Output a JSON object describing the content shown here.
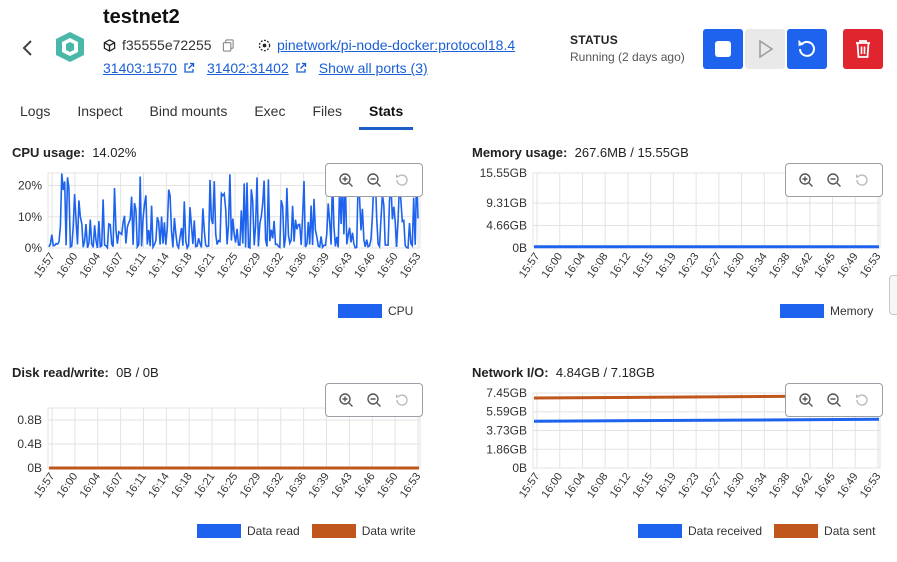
{
  "header": {
    "title": "testnet2",
    "container_id": "f35555e72255",
    "image": "pinetwork/pi-node-docker:protocol18.4",
    "ports": [
      "31403:1570",
      "31402:31402"
    ],
    "show_all_ports": "Show all ports (3)",
    "status_label": "STATUS",
    "status_value": "Running (2 days ago)"
  },
  "tabs": [
    {
      "label": "Logs",
      "active": false
    },
    {
      "label": "Inspect",
      "active": false
    },
    {
      "label": "Bind mounts",
      "active": false
    },
    {
      "label": "Exec",
      "active": false
    },
    {
      "label": "Files",
      "active": false
    },
    {
      "label": "Stats",
      "active": true
    }
  ],
  "colors": {
    "blue": "#1d63ed",
    "orange": "#c0561b",
    "red": "#e0252f"
  },
  "panels": {
    "cpu": {
      "label": "CPU usage:",
      "value": "14.02%"
    },
    "memory": {
      "label": "Memory usage:",
      "value": "267.6MB / 15.55GB"
    },
    "disk": {
      "label": "Disk read/write:",
      "value": "0B / 0B"
    },
    "network": {
      "label": "Network I/O:",
      "value": "4.84GB / 7.18GB"
    }
  },
  "chart_data": [
    {
      "id": "cpu",
      "type": "line",
      "y_ticks": [
        "20%",
        "10%",
        "0%"
      ],
      "y_tick_values": [
        20,
        10,
        0
      ],
      "ylim": [
        0,
        24
      ],
      "x_ticks": [
        "15:57",
        "16:00",
        "16:04",
        "16:07",
        "16:11",
        "16:14",
        "16:18",
        "16:21",
        "16:25",
        "16:29",
        "16:32",
        "16:36",
        "16:39",
        "16:43",
        "16:46",
        "16:50",
        "16:53"
      ],
      "series": [
        {
          "name": "CPU",
          "color": "#1d63ed",
          "values_note": "oscillating",
          "min": 0,
          "max": 24,
          "typical": 8
        }
      ],
      "legend": "bottom-right"
    },
    {
      "id": "memory",
      "type": "line",
      "y_ticks": [
        "15.55GB",
        "9.31GB",
        "4.66GB",
        "0B"
      ],
      "y_tick_values": [
        15.55,
        9.31,
        4.66,
        0
      ],
      "ylim": [
        0,
        15.55
      ],
      "x_ticks": [
        "15:57",
        "16:00",
        "16:04",
        "16:08",
        "16:12",
        "16:15",
        "16:19",
        "16:23",
        "16:27",
        "16:30",
        "16:34",
        "16:38",
        "16:42",
        "16:45",
        "16:49",
        "16:53"
      ],
      "series": [
        {
          "name": "Memory",
          "color": "#1d63ed",
          "values": [
            0.27,
            0.27
          ]
        }
      ],
      "legend": "bottom-right"
    },
    {
      "id": "disk",
      "type": "line",
      "y_ticks": [
        "0.8B",
        "0.4B",
        "0B"
      ],
      "y_tick_values": [
        0.8,
        0.4,
        0
      ],
      "ylim": [
        0,
        1
      ],
      "x_ticks": [
        "15:57",
        "16:00",
        "16:04",
        "16:07",
        "16:11",
        "16:14",
        "16:18",
        "16:21",
        "16:25",
        "16:29",
        "16:32",
        "16:36",
        "16:39",
        "16:43",
        "16:46",
        "16:50",
        "16:53"
      ],
      "series": [
        {
          "name": "Data read",
          "color": "#1d63ed",
          "values": [
            0,
            0
          ]
        },
        {
          "name": "Data write",
          "color": "#c0561b",
          "values": [
            0,
            0
          ]
        }
      ],
      "legend": "bottom-right"
    },
    {
      "id": "network",
      "type": "line",
      "y_ticks": [
        "7.45GB",
        "5.59GB",
        "3.73GB",
        "1.86GB",
        "0B"
      ],
      "y_tick_values": [
        7.45,
        5.59,
        3.73,
        1.86,
        0
      ],
      "ylim": [
        0,
        7.45
      ],
      "x_ticks": [
        "15:57",
        "16:00",
        "16:04",
        "16:08",
        "16:12",
        "16:15",
        "16:19",
        "16:23",
        "16:27",
        "16:30",
        "16:34",
        "16:38",
        "16:42",
        "16:45",
        "16:49",
        "16:53"
      ],
      "series": [
        {
          "name": "Data received",
          "color": "#1d63ed",
          "values": [
            4.65,
            4.84
          ]
        },
        {
          "name": "Data sent",
          "color": "#c0561b",
          "values": [
            6.95,
            7.18
          ]
        }
      ],
      "legend": "bottom-right"
    }
  ]
}
